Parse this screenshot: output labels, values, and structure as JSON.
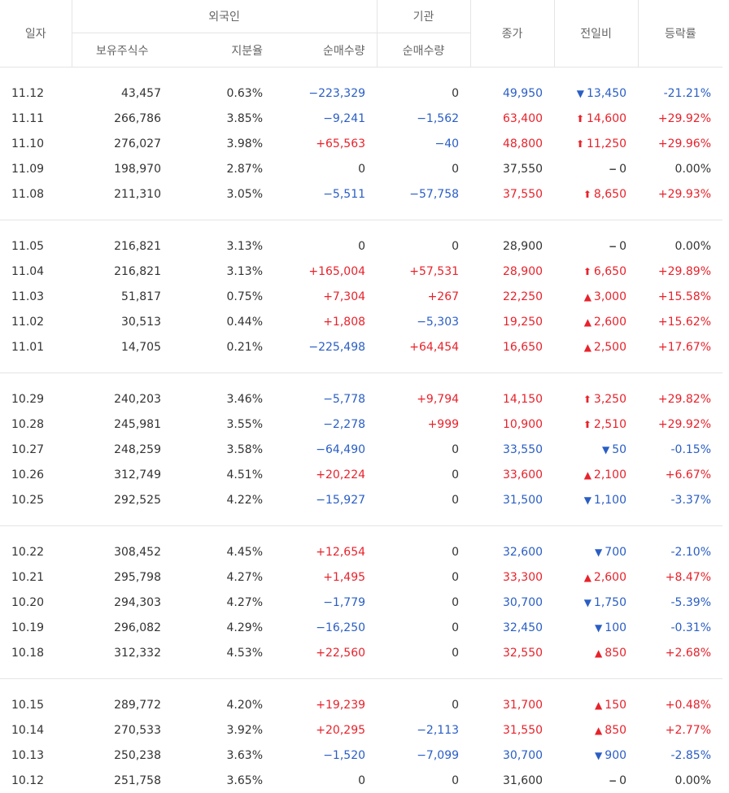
{
  "headers": {
    "date": "일자",
    "foreign": "외국인",
    "institution": "기관",
    "holdings": "보유주식수",
    "share_ratio": "지분율",
    "foreign_net": "순매수량",
    "inst_net": "순매수량",
    "close": "종가",
    "change": "전일비",
    "change_rate": "등락률"
  },
  "groups": [
    [
      {
        "date": "11.12",
        "holdings": "43,457",
        "ratio": "0.63%",
        "fnet": "−223,329",
        "inet": "0",
        "close": "49,950",
        "chg": "13,450",
        "arrow": "▼",
        "rate": "-21.21%",
        "dir": "down"
      },
      {
        "date": "11.11",
        "holdings": "266,786",
        "ratio": "3.85%",
        "fnet": "−9,241",
        "inet": "−1,562",
        "close": "63,400",
        "chg": "14,600",
        "arrow": "⬆",
        "rate": "+29.92%",
        "dir": "up"
      },
      {
        "date": "11.10",
        "holdings": "276,027",
        "ratio": "3.98%",
        "fnet": "+65,563",
        "inet": "−40",
        "close": "48,800",
        "chg": "11,250",
        "arrow": "⬆",
        "rate": "+29.96%",
        "dir": "up"
      },
      {
        "date": "11.09",
        "holdings": "198,970",
        "ratio": "2.87%",
        "fnet": "0",
        "inet": "0",
        "close": "37,550",
        "chg": "0",
        "arrow": "−",
        "rate": "0.00%",
        "dir": "flat"
      },
      {
        "date": "11.08",
        "holdings": "211,310",
        "ratio": "3.05%",
        "fnet": "−5,511",
        "inet": "−57,758",
        "close": "37,550",
        "chg": "8,650",
        "arrow": "⬆",
        "rate": "+29.93%",
        "dir": "up"
      }
    ],
    [
      {
        "date": "11.05",
        "holdings": "216,821",
        "ratio": "3.13%",
        "fnet": "0",
        "inet": "0",
        "close": "28,900",
        "chg": "0",
        "arrow": "−",
        "rate": "0.00%",
        "dir": "flat"
      },
      {
        "date": "11.04",
        "holdings": "216,821",
        "ratio": "3.13%",
        "fnet": "+165,004",
        "inet": "+57,531",
        "close": "28,900",
        "chg": "6,650",
        "arrow": "⬆",
        "rate": "+29.89%",
        "dir": "up"
      },
      {
        "date": "11.03",
        "holdings": "51,817",
        "ratio": "0.75%",
        "fnet": "+7,304",
        "inet": "+267",
        "close": "22,250",
        "chg": "3,000",
        "arrow": "▲",
        "rate": "+15.58%",
        "dir": "up"
      },
      {
        "date": "11.02",
        "holdings": "30,513",
        "ratio": "0.44%",
        "fnet": "+1,808",
        "inet": "−5,303",
        "close": "19,250",
        "chg": "2,600",
        "arrow": "▲",
        "rate": "+15.62%",
        "dir": "up"
      },
      {
        "date": "11.01",
        "holdings": "14,705",
        "ratio": "0.21%",
        "fnet": "−225,498",
        "inet": "+64,454",
        "close": "16,650",
        "chg": "2,500",
        "arrow": "▲",
        "rate": "+17.67%",
        "dir": "up"
      }
    ],
    [
      {
        "date": "10.29",
        "holdings": "240,203",
        "ratio": "3.46%",
        "fnet": "−5,778",
        "inet": "+9,794",
        "close": "14,150",
        "chg": "3,250",
        "arrow": "⬆",
        "rate": "+29.82%",
        "dir": "up"
      },
      {
        "date": "10.28",
        "holdings": "245,981",
        "ratio": "3.55%",
        "fnet": "−2,278",
        "inet": "+999",
        "close": "10,900",
        "chg": "2,510",
        "arrow": "⬆",
        "rate": "+29.92%",
        "dir": "up"
      },
      {
        "date": "10.27",
        "holdings": "248,259",
        "ratio": "3.58%",
        "fnet": "−64,490",
        "inet": "0",
        "close": "33,550",
        "chg": "50",
        "arrow": "▼",
        "rate": "-0.15%",
        "dir": "down"
      },
      {
        "date": "10.26",
        "holdings": "312,749",
        "ratio": "4.51%",
        "fnet": "+20,224",
        "inet": "0",
        "close": "33,600",
        "chg": "2,100",
        "arrow": "▲",
        "rate": "+6.67%",
        "dir": "up"
      },
      {
        "date": "10.25",
        "holdings": "292,525",
        "ratio": "4.22%",
        "fnet": "−15,927",
        "inet": "0",
        "close": "31,500",
        "chg": "1,100",
        "arrow": "▼",
        "rate": "-3.37%",
        "dir": "down"
      }
    ],
    [
      {
        "date": "10.22",
        "holdings": "308,452",
        "ratio": "4.45%",
        "fnet": "+12,654",
        "inet": "0",
        "close": "32,600",
        "chg": "700",
        "arrow": "▼",
        "rate": "-2.10%",
        "dir": "down"
      },
      {
        "date": "10.21",
        "holdings": "295,798",
        "ratio": "4.27%",
        "fnet": "+1,495",
        "inet": "0",
        "close": "33,300",
        "chg": "2,600",
        "arrow": "▲",
        "rate": "+8.47%",
        "dir": "up"
      },
      {
        "date": "10.20",
        "holdings": "294,303",
        "ratio": "4.27%",
        "fnet": "−1,779",
        "inet": "0",
        "close": "30,700",
        "chg": "1,750",
        "arrow": "▼",
        "rate": "-5.39%",
        "dir": "down"
      },
      {
        "date": "10.19",
        "holdings": "296,082",
        "ratio": "4.29%",
        "fnet": "−16,250",
        "inet": "0",
        "close": "32,450",
        "chg": "100",
        "arrow": "▼",
        "rate": "-0.31%",
        "dir": "down"
      },
      {
        "date": "10.18",
        "holdings": "312,332",
        "ratio": "4.53%",
        "fnet": "+22,560",
        "inet": "0",
        "close": "32,550",
        "chg": "850",
        "arrow": "▲",
        "rate": "+2.68%",
        "dir": "up"
      }
    ],
    [
      {
        "date": "10.15",
        "holdings": "289,772",
        "ratio": "4.20%",
        "fnet": "+19,239",
        "inet": "0",
        "close": "31,700",
        "chg": "150",
        "arrow": "▲",
        "rate": "+0.48%",
        "dir": "up"
      },
      {
        "date": "10.14",
        "holdings": "270,533",
        "ratio": "3.92%",
        "fnet": "+20,295",
        "inet": "−2,113",
        "close": "31,550",
        "chg": "850",
        "arrow": "▲",
        "rate": "+2.77%",
        "dir": "up"
      },
      {
        "date": "10.13",
        "holdings": "250,238",
        "ratio": "3.63%",
        "fnet": "−1,520",
        "inet": "−7,099",
        "close": "30,700",
        "chg": "900",
        "arrow": "▼",
        "rate": "-2.85%",
        "dir": "down"
      },
      {
        "date": "10.12",
        "holdings": "251,758",
        "ratio": "3.65%",
        "fnet": "0",
        "inet": "0",
        "close": "31,600",
        "chg": "0",
        "arrow": "−",
        "rate": "0.00%",
        "dir": "flat"
      }
    ]
  ],
  "colors": {
    "up": "#e8222b",
    "down": "#2a5ec4",
    "flat": "#333333",
    "border": "#e4e4e4"
  }
}
